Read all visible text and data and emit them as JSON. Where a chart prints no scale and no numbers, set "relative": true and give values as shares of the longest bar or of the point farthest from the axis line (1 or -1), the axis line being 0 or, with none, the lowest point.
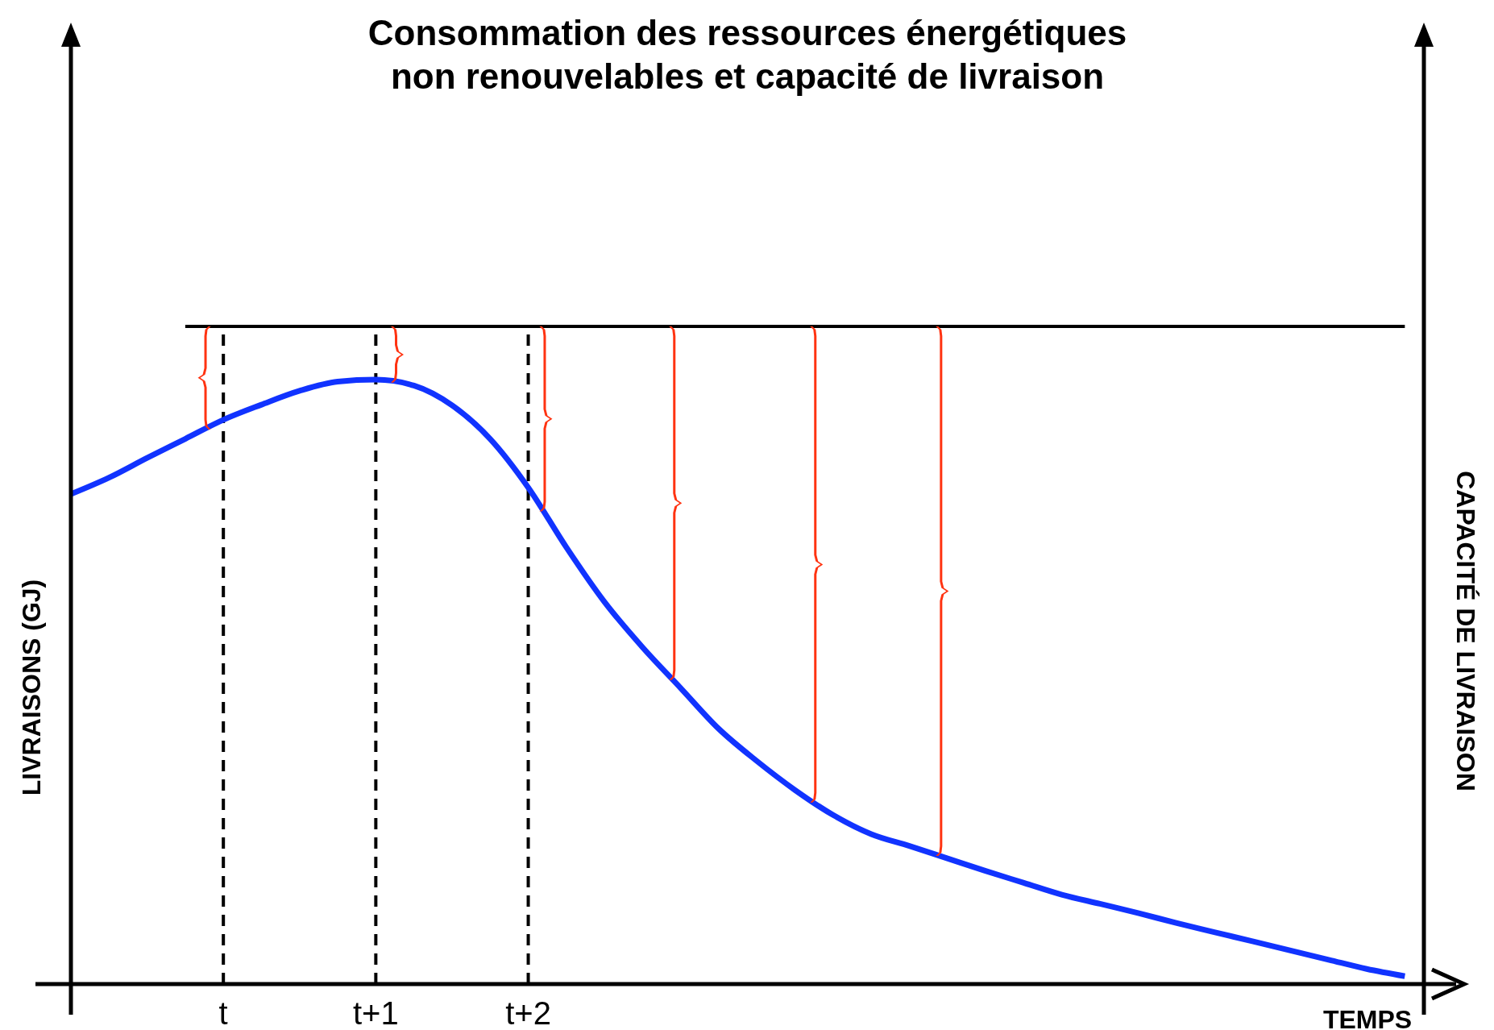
{
  "chart_data": {
    "type": "line",
    "title": "Consommation des ressources énergétiques non renouvelables et capacité de livraison",
    "xlabel": "TEMPS",
    "ylabel": "LIVRAISONS (GJ)",
    "y2label": "CAPACITÉ DE LIVRAISON",
    "relative": true,
    "categories": [
      null,
      null,
      null,
      null,
      "t",
      null,
      null,
      null,
      "t+1",
      null,
      null,
      null,
      "t+2",
      null,
      null,
      null,
      null,
      null,
      null,
      null,
      null,
      null,
      null,
      null,
      null,
      null,
      null,
      null,
      null,
      null,
      null,
      null,
      null,
      null,
      null,
      null
    ],
    "series": [
      {
        "color": "#1133ff",
        "values": [
          0.745,
          0.77,
          0.8,
          0.829,
          0.858,
          0.881,
          0.902,
          0.916,
          0.919,
          0.91,
          0.88,
          0.829,
          0.755,
          0.664,
          0.581,
          0.512,
          0.45,
          0.388,
          0.339,
          0.295,
          0.257,
          0.228,
          0.21,
          0.191,
          0.172,
          0.154,
          0.136,
          0.122,
          0.108,
          0.093,
          0.079,
          0.065,
          0.051,
          0.037,
          0.023,
          0.012
        ]
      },
      {
        "color": "#000000",
        "values": [
          null,
          null,
          null,
          1,
          1,
          1,
          1,
          1,
          1,
          1,
          1,
          1,
          1,
          1,
          1,
          1,
          1,
          1,
          1,
          1,
          1,
          1,
          1,
          1,
          1,
          1,
          1,
          1,
          1,
          1,
          1,
          1,
          1,
          1,
          1,
          1
        ]
      }
    ],
    "ref_lines": [
      {
        "axis": "x",
        "value": "t",
        "label": null,
        "color": "#000000",
        "line_style": "dashed"
      },
      {
        "axis": "x",
        "value": "t+1",
        "label": null,
        "color": "#000000",
        "line_style": "dashed"
      },
      {
        "axis": "x",
        "value": "t+2",
        "label": null,
        "color": "#000000",
        "line_style": "dashed"
      }
    ]
  }
}
